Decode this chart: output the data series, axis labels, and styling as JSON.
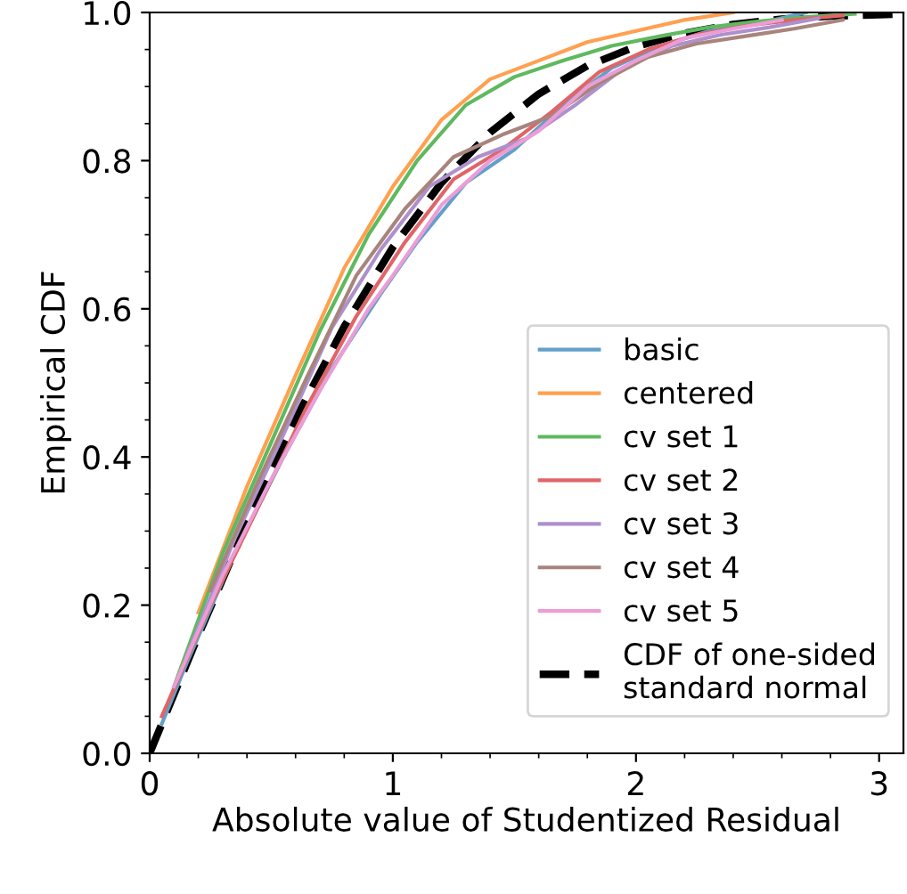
{
  "chart_data": {
    "type": "line",
    "xlabel": "Absolute value of Studentized Residual",
    "ylabel": "Empirical CDF",
    "series": [
      {
        "name": "basic",
        "color": "#62a0ca",
        "x": [
          0.05,
          0.15,
          0.35,
          0.55,
          0.75,
          0.95,
          1.1,
          1.3,
          1.5,
          1.7,
          1.9,
          2.1,
          2.3,
          2.5,
          2.7
        ],
        "values": [
          0.04,
          0.12,
          0.27,
          0.4,
          0.52,
          0.62,
          0.69,
          0.77,
          0.815,
          0.875,
          0.925,
          0.955,
          0.975,
          0.985,
          1.0
        ]
      },
      {
        "name": "centered",
        "color": "#ffa04f",
        "x": [
          0.2,
          0.4,
          0.6,
          0.8,
          1.0,
          1.2,
          1.4,
          1.6,
          1.8,
          2.0,
          2.2,
          2.4
        ],
        "values": [
          0.19,
          0.36,
          0.51,
          0.655,
          0.765,
          0.855,
          0.91,
          0.935,
          0.96,
          0.975,
          0.99,
          1.0
        ]
      },
      {
        "name": "cv set 1",
        "color": "#5fb95f",
        "x": [
          0.1,
          0.3,
          0.5,
          0.7,
          0.9,
          1.1,
          1.3,
          1.5,
          1.7,
          1.9,
          2.1,
          2.3,
          2.5,
          2.7,
          2.9
        ],
        "values": [
          0.09,
          0.27,
          0.42,
          0.57,
          0.7,
          0.8,
          0.875,
          0.913,
          0.935,
          0.955,
          0.968,
          0.98,
          0.988,
          0.994,
          0.998
        ]
      },
      {
        "name": "cv set 2",
        "color": "#e06566",
        "x": [
          0.05,
          0.25,
          0.45,
          0.65,
          0.85,
          1.05,
          1.25,
          1.45,
          1.65,
          1.85,
          2.05,
          2.25,
          2.45,
          2.65,
          2.85
        ],
        "values": [
          0.05,
          0.2,
          0.335,
          0.47,
          0.59,
          0.69,
          0.775,
          0.815,
          0.865,
          0.92,
          0.95,
          0.97,
          0.982,
          0.99,
          0.996
        ]
      },
      {
        "name": "cv set 3",
        "color": "#ad90cc",
        "x": [
          0.15,
          0.35,
          0.55,
          0.75,
          0.95,
          1.15,
          1.35,
          1.55,
          1.75,
          1.95,
          2.15,
          2.35,
          2.55,
          2.75
        ],
        "values": [
          0.13,
          0.29,
          0.43,
          0.575,
          0.68,
          0.765,
          0.805,
          0.83,
          0.875,
          0.925,
          0.955,
          0.97,
          0.98,
          0.992
        ]
      },
      {
        "name": "cv set 4",
        "color": "#a8847c",
        "x": [
          0.25,
          0.45,
          0.65,
          0.85,
          1.05,
          1.25,
          1.45,
          1.65,
          1.85,
          2.05,
          2.25,
          2.45,
          2.65,
          2.85
        ],
        "values": [
          0.22,
          0.37,
          0.51,
          0.645,
          0.735,
          0.805,
          0.835,
          0.86,
          0.905,
          0.94,
          0.958,
          0.968,
          0.978,
          0.99
        ]
      },
      {
        "name": "cv set 5",
        "color": "#eb9dd6",
        "x": [
          0.1,
          0.3,
          0.5,
          0.7,
          0.9,
          1.0,
          1.2,
          1.4,
          1.6,
          1.8,
          2.0,
          2.2,
          2.4,
          2.6
        ],
        "values": [
          0.09,
          0.24,
          0.37,
          0.49,
          0.6,
          0.645,
          0.74,
          0.8,
          0.84,
          0.9,
          0.935,
          0.965,
          0.978,
          0.99
        ]
      },
      {
        "name": "CDF of one-sided\nstandard normal",
        "line_style": "dashed",
        "color": "#000000",
        "x": [
          0,
          0.2,
          0.4,
          0.6,
          0.8,
          1.0,
          1.2,
          1.4,
          1.6,
          1.8,
          2.0,
          2.2,
          2.4,
          2.6,
          2.8,
          3.0,
          3.1
        ],
        "values": [
          0,
          0.159,
          0.311,
          0.451,
          0.576,
          0.683,
          0.77,
          0.838,
          0.89,
          0.928,
          0.954,
          0.972,
          0.984,
          0.991,
          0.995,
          0.997,
          0.998
        ]
      }
    ],
    "xlim": [
      0,
      3.1
    ],
    "ylim": [
      0,
      1.0
    ],
    "xticks": [
      0,
      1,
      2,
      3
    ],
    "yticks": [
      {
        "value": 0,
        "label": "0.0"
      },
      0.2,
      0.4,
      0.6,
      0.8,
      {
        "value": 1,
        "label": "1.0"
      }
    ],
    "grid": false,
    "legend": "bottom right",
    "marker": "none",
    "line_style": "solid"
  }
}
